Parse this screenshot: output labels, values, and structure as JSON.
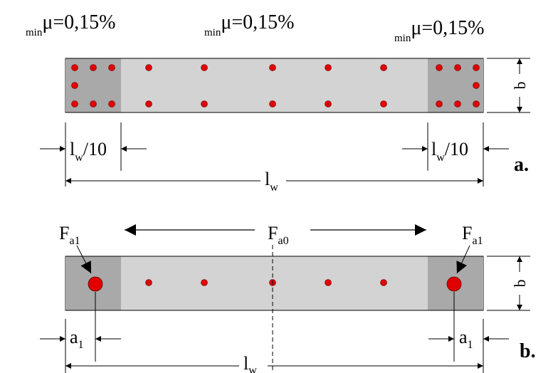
{
  "top_labels": [
    {
      "sub": "min",
      "main": "μ=0,15%"
    },
    {
      "sub": "min",
      "main": "μ=0,15%"
    },
    {
      "sub": "min",
      "main": "μ=0,15%"
    }
  ],
  "section_a": {
    "panel_label": "a.",
    "height_label": "b",
    "end_zone_left": {
      "base": "l",
      "sub": "w",
      "rest": "/10"
    },
    "end_zone_right": {
      "base": "l",
      "sub": "w",
      "rest": "/10"
    },
    "total_length": {
      "base": "l",
      "sub": "w"
    }
  },
  "section_b": {
    "panel_label": "b.",
    "height_label": "b",
    "force_left": {
      "base": "F",
      "sub": "a1"
    },
    "force_center": {
      "base": "F",
      "sub": "a0"
    },
    "force_right": {
      "base": "F",
      "sub": "a1"
    },
    "offset_left": {
      "base": "a",
      "sub": "1"
    },
    "offset_right": {
      "base": "a",
      "sub": "1"
    },
    "total_length": {
      "base": "l",
      "sub": "w"
    }
  },
  "colors": {
    "web": "#d3d3d3",
    "end_zone": "#a9a9a9",
    "bar": "#e00000",
    "line": "#000000"
  }
}
